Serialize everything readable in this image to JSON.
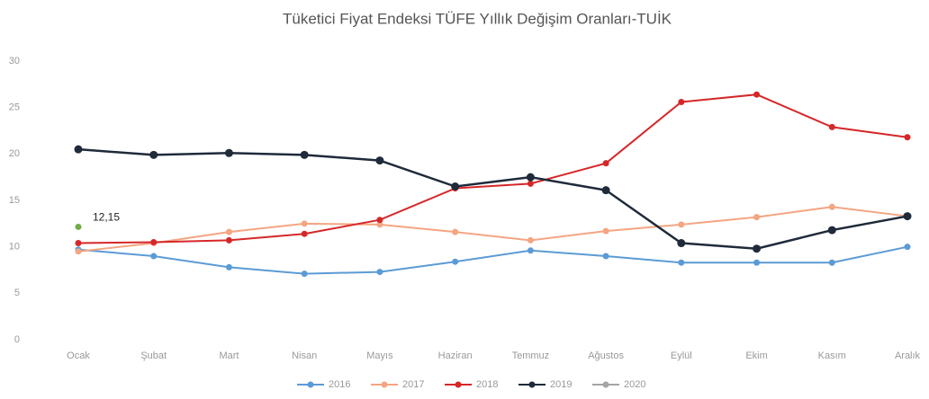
{
  "chart_data": {
    "type": "line",
    "title": "Tüketici Fiyat Endeksi TÜFE Yıllık Değişim Oranları-TUİK",
    "categories": [
      "Ocak",
      "Şubat",
      "Mart",
      "Nisan",
      "Mayıs",
      "Haziran",
      "Temmuz",
      "Ağustos",
      "Eylül",
      "Ekim",
      "Kasım",
      "Aralık"
    ],
    "series": [
      {
        "name": "2016",
        "color": "#5b9bd5",
        "values": [
          9.7,
          9.0,
          7.8,
          7.1,
          7.3,
          8.4,
          9.6,
          9.0,
          8.3,
          8.3,
          8.3,
          10.0
        ]
      },
      {
        "name": "2017",
        "color": "#f4a582",
        "values": [
          9.5,
          10.4,
          11.6,
          12.5,
          12.4,
          11.6,
          10.7,
          11.7,
          12.4,
          13.2,
          14.3,
          13.3
        ]
      },
      {
        "name": "2018",
        "color": "#d62728",
        "values": [
          10.4,
          10.5,
          10.7,
          11.4,
          12.9,
          16.3,
          16.8,
          19.0,
          25.6,
          26.4,
          22.9,
          21.8
        ]
      },
      {
        "name": "2019",
        "color": "#1f2a3a",
        "values": [
          20.5,
          19.9,
          20.1,
          19.9,
          19.3,
          16.5,
          17.5,
          16.1,
          10.4,
          9.8,
          11.8,
          13.3
        ]
      },
      {
        "name": "2020",
        "color": "#a5a5a5",
        "marker_color": "#70ad47",
        "values": [
          12.15,
          null,
          null,
          null,
          null,
          null,
          null,
          null,
          null,
          null,
          null,
          null
        ],
        "value_labels": [
          "12,15",
          null,
          null,
          null,
          null,
          null,
          null,
          null,
          null,
          null,
          null,
          null
        ]
      }
    ],
    "ylim": [
      0,
      30
    ],
    "yticks": [
      0,
      5,
      10,
      15,
      20,
      25,
      30
    ],
    "grid": false,
    "legend": "bottom"
  }
}
